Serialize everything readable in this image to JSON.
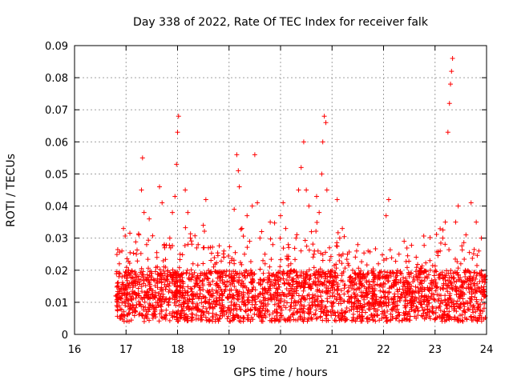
{
  "chart_data": {
    "type": "scatter",
    "title": "Day 338 of 2022, Rate Of TEC Index for receiver falk",
    "xlabel": "GPS time / hours",
    "ylabel": "ROTI / TECUs",
    "xlim": [
      16,
      24
    ],
    "ylim": [
      0,
      0.09
    ],
    "xticks": [
      "16",
      "17",
      "18",
      "19",
      "20",
      "21",
      "22",
      "23",
      "24"
    ],
    "yticks": [
      "0",
      "0.01",
      "0.02",
      "0.03",
      "0.04",
      "0.05",
      "0.06",
      "0.07",
      "0.08",
      "0.09"
    ],
    "grid": true,
    "marker": "plus",
    "color": "#ff0000",
    "series": [
      {
        "points": [
          [
            16.8,
            0.012
          ],
          [
            16.82,
            0.009
          ],
          [
            16.85,
            0.015
          ],
          [
            16.87,
            0.022
          ],
          [
            16.9,
            0.011
          ],
          [
            16.92,
            0.026
          ],
          [
            16.95,
            0.033
          ],
          [
            16.97,
            0.018
          ],
          [
            17.0,
            0.014
          ],
          [
            17.05,
            0.02
          ],
          [
            17.08,
            0.009
          ],
          [
            17.12,
            0.016
          ],
          [
            17.15,
            0.013
          ],
          [
            17.2,
            0.025
          ],
          [
            17.25,
            0.031
          ],
          [
            17.3,
            0.045
          ],
          [
            17.32,
            0.055
          ],
          [
            17.35,
            0.038
          ],
          [
            17.4,
            0.028
          ],
          [
            17.45,
            0.036
          ],
          [
            17.5,
            0.019
          ],
          [
            17.55,
            0.012
          ],
          [
            17.6,
            0.024
          ],
          [
            17.65,
            0.046
          ],
          [
            17.7,
            0.041
          ],
          [
            17.75,
            0.027
          ],
          [
            17.8,
            0.017
          ],
          [
            17.85,
            0.03
          ],
          [
            17.9,
            0.038
          ],
          [
            17.95,
            0.043
          ],
          [
            17.98,
            0.053
          ],
          [
            18.0,
            0.063
          ],
          [
            18.02,
            0.068
          ],
          [
            18.05,
            0.025
          ],
          [
            18.1,
            0.013
          ],
          [
            18.15,
            0.045
          ],
          [
            18.2,
            0.038
          ],
          [
            18.25,
            0.03
          ],
          [
            18.3,
            0.022
          ],
          [
            18.35,
            0.016
          ],
          [
            18.4,
            0.028
          ],
          [
            18.45,
            0.019
          ],
          [
            18.5,
            0.034
          ],
          [
            18.55,
            0.042
          ],
          [
            18.6,
            0.027
          ],
          [
            18.65,
            0.012
          ],
          [
            18.7,
            0.021
          ],
          [
            18.8,
            0.015
          ],
          [
            18.9,
            0.026
          ],
          [
            19.0,
            0.018
          ],
          [
            19.05,
            0.023
          ],
          [
            19.1,
            0.039
          ],
          [
            19.15,
            0.056
          ],
          [
            19.18,
            0.051
          ],
          [
            19.2,
            0.046
          ],
          [
            19.25,
            0.033
          ],
          [
            19.3,
            0.025
          ],
          [
            19.35,
            0.037
          ],
          [
            19.4,
            0.029
          ],
          [
            19.45,
            0.04
          ],
          [
            19.5,
            0.056
          ],
          [
            19.55,
            0.041
          ],
          [
            19.6,
            0.03
          ],
          [
            19.7,
            0.022
          ],
          [
            19.8,
            0.035
          ],
          [
            19.85,
            0.028
          ],
          [
            19.9,
            0.016
          ],
          [
            20.0,
            0.037
          ],
          [
            20.05,
            0.041
          ],
          [
            20.1,
            0.033
          ],
          [
            20.15,
            0.028
          ],
          [
            20.2,
            0.022
          ],
          [
            20.3,
            0.03
          ],
          [
            20.35,
            0.045
          ],
          [
            20.4,
            0.052
          ],
          [
            20.45,
            0.06
          ],
          [
            20.5,
            0.045
          ],
          [
            20.55,
            0.04
          ],
          [
            20.6,
            0.032
          ],
          [
            20.65,
            0.025
          ],
          [
            20.7,
            0.043
          ],
          [
            20.75,
            0.038
          ],
          [
            20.8,
            0.05
          ],
          [
            20.82,
            0.06
          ],
          [
            20.85,
            0.068
          ],
          [
            20.88,
            0.066
          ],
          [
            20.9,
            0.045
          ],
          [
            20.95,
            0.027
          ],
          [
            21.0,
            0.02
          ],
          [
            21.05,
            0.014
          ],
          [
            21.1,
            0.042
          ],
          [
            21.15,
            0.03
          ],
          [
            21.2,
            0.033
          ],
          [
            21.3,
            0.025
          ],
          [
            21.4,
            0.02
          ],
          [
            21.5,
            0.028
          ],
          [
            21.6,
            0.018
          ],
          [
            21.7,
            0.026
          ],
          [
            21.8,
            0.012
          ],
          [
            21.9,
            0.022
          ],
          [
            22.0,
            0.016
          ],
          [
            22.05,
            0.037
          ],
          [
            22.1,
            0.042
          ],
          [
            22.2,
            0.015
          ],
          [
            22.3,
            0.025
          ],
          [
            22.4,
            0.029
          ],
          [
            22.5,
            0.018
          ],
          [
            22.6,
            0.011
          ],
          [
            22.7,
            0.02
          ],
          [
            22.8,
            0.014
          ],
          [
            22.9,
            0.023
          ],
          [
            23.0,
            0.017
          ],
          [
            23.1,
            0.026
          ],
          [
            23.15,
            0.03
          ],
          [
            23.2,
            0.035
          ],
          [
            23.25,
            0.063
          ],
          [
            23.28,
            0.072
          ],
          [
            23.3,
            0.078
          ],
          [
            23.32,
            0.082
          ],
          [
            23.34,
            0.086
          ],
          [
            23.4,
            0.035
          ],
          [
            23.45,
            0.04
          ],
          [
            23.5,
            0.022
          ],
          [
            23.6,
            0.031
          ],
          [
            23.7,
            0.041
          ],
          [
            23.8,
            0.035
          ],
          [
            23.85,
            0.026
          ],
          [
            23.9,
            0.03
          ],
          [
            23.95,
            0.018
          ],
          [
            23.98,
            0.012
          ]
        ]
      }
    ]
  }
}
